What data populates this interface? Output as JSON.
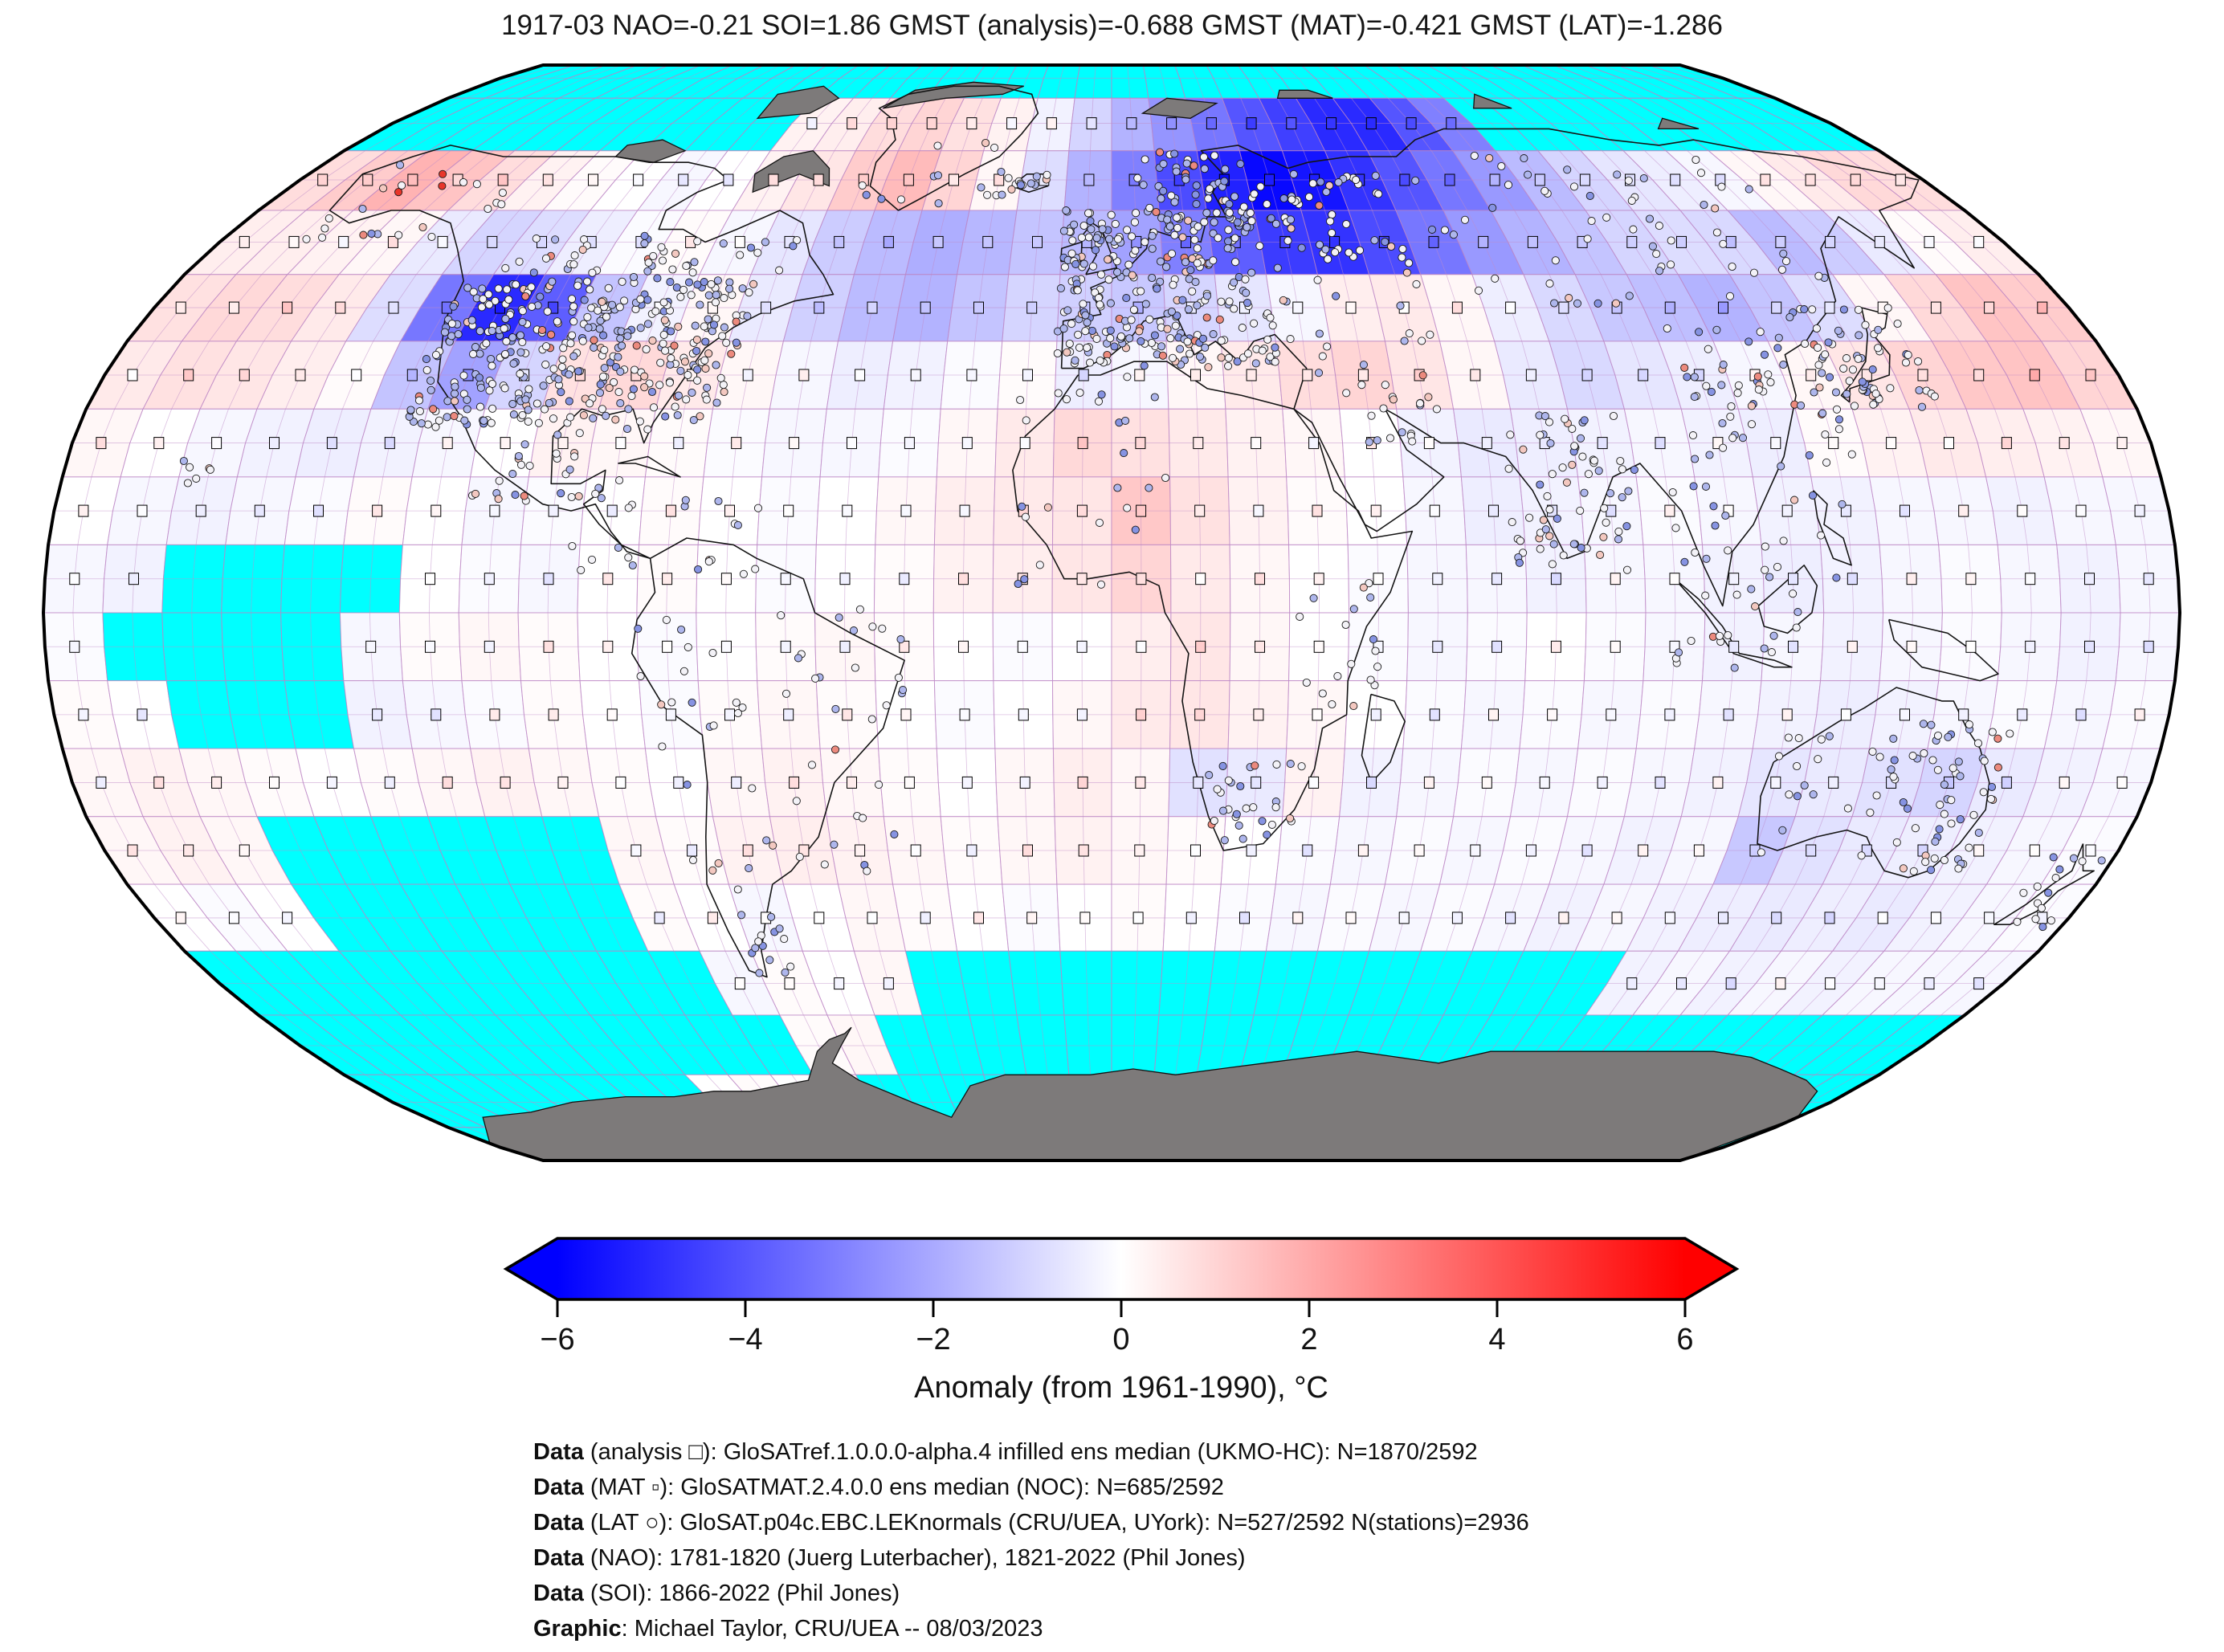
{
  "title": "1917-03 NAO=-0.21 SOI=1.86 GMST (analysis)=-0.688 GMST (MAT)=-0.421 GMST (LAT)=-1.286",
  "chart_data": {
    "type": "heatmap",
    "projection": "Robinson world map, 5-degree graticule",
    "stats": {
      "month": "1917-03",
      "NAO": -0.21,
      "SOI": 1.86,
      "GMST_analysis": -0.688,
      "GMST_MAT": -0.421,
      "GMST_LAT": -1.286
    },
    "colorbar": {
      "label": "Anomaly (from 1961-1990), °C",
      "ticks": [
        -6,
        -4,
        -2,
        0,
        2,
        4,
        6
      ],
      "min": -6,
      "max": 6,
      "colors": {
        "low": "#0000ff",
        "mid": "#ffffff",
        "high": "#ff0000",
        "missing": "#00ffff",
        "land_no_data": "#7d7a7a"
      }
    },
    "markers": [
      {
        "symbol": "□",
        "name": "analysis",
        "count_label": "N=1870/2592"
      },
      {
        "symbol": "▫",
        "name": "MAT",
        "count_label": "N=685/2592"
      },
      {
        "symbol": "○",
        "name": "LAT stations",
        "count_label": "N=527/2592 N(stations)=2936"
      }
    ],
    "grid": {
      "lat_step": 10,
      "lon_step": 10,
      "row_order": "north-to-south starting 90N-80N",
      "col_order": "west-to-east starting 180W-170W",
      "missing_token": "X",
      "anomaly_rows": [
        [
          "X",
          "X",
          "X",
          "X",
          "X",
          "X",
          "X",
          "X",
          "X",
          "X",
          "X",
          "X",
          "X",
          "X",
          "X",
          "X",
          "X",
          "X",
          "X",
          "X",
          "X",
          "X",
          "X",
          "X",
          "X",
          "X",
          "X",
          "X",
          "X",
          "X",
          "X",
          "X",
          "X",
          "X",
          "X",
          "X"
        ],
        [
          "X",
          "X",
          "X",
          "X",
          "X",
          "X",
          "X",
          "X",
          "X",
          "X",
          0.3,
          0.4,
          0.8,
          1.0,
          0.7,
          0.3,
          -0.3,
          -1.0,
          -1.8,
          -2.5,
          -3.2,
          -4.0,
          -4.5,
          -5.0,
          -5.0,
          -4.0,
          -3.0,
          "X",
          "X",
          "X",
          "X",
          "X",
          "X",
          "X",
          "X",
          "X"
        ],
        [
          0.8,
          1.2,
          1.8,
          1.4,
          0.8,
          0.3,
          0.1,
          0.0,
          -0.2,
          0.0,
          0.3,
          0.6,
          1.2,
          1.6,
          1.0,
          0.2,
          -0.8,
          -1.8,
          -3.0,
          -4.2,
          -5.2,
          -5.8,
          -5.5,
          -4.8,
          -4.0,
          -3.2,
          -2.4,
          -1.6,
          -1.0,
          -0.6,
          -0.4,
          -0.2,
          0.2,
          0.5,
          0.9,
          0.8
        ],
        [
          0.4,
          0.4,
          0.3,
          0.2,
          -0.5,
          -1.0,
          -0.8,
          -0.4,
          -0.1,
          0.1,
          -0.2,
          -0.6,
          -1.2,
          -1.6,
          -1.9,
          -1.7,
          -1.4,
          -1.6,
          -2.2,
          -3.0,
          -3.8,
          -4.6,
          -4.8,
          -4.2,
          -3.2,
          -2.4,
          -1.8,
          -1.4,
          -1.0,
          -0.8,
          -0.9,
          -1.6,
          -1.2,
          -0.5,
          0.1,
          0.4
        ],
        [
          0.7,
          0.9,
          0.8,
          0.5,
          -0.8,
          -3.2,
          -5.0,
          -3.8,
          -1.4,
          -0.3,
          0.2,
          -0.5,
          -1.1,
          -1.6,
          -1.8,
          -1.4,
          -1.0,
          -1.1,
          -1.3,
          -1.0,
          -0.6,
          -0.2,
          0.4,
          0.5,
          0.2,
          -0.4,
          -0.9,
          -1.3,
          -1.5,
          -1.8,
          -1.4,
          -0.8,
          0.2,
          0.9,
          1.4,
          1.2
        ],
        [
          0.5,
          0.7,
          0.6,
          0.4,
          0.1,
          -1.4,
          -2.2,
          -1.0,
          0.7,
          0.9,
          0.5,
          0.2,
          -0.2,
          -0.4,
          -0.3,
          -0.1,
          0.1,
          -0.4,
          -0.2,
          0.2,
          0.5,
          0.8,
          1.0,
          0.6,
          0.2,
          -0.5,
          -0.9,
          -0.6,
          -0.4,
          -0.2,
          0.2,
          0.6,
          1.0,
          1.3,
          1.4,
          1.0
        ],
        [
          0.2,
          0.0,
          -0.2,
          -0.3,
          -0.4,
          -0.3,
          -0.2,
          0.0,
          0.3,
          0.2,
          0.1,
          -0.1,
          -0.2,
          -0.2,
          -0.1,
          0.2,
          0.5,
          0.9,
          0.7,
          0.5,
          0.3,
          0.2,
          0.0,
          -0.3,
          -0.5,
          -0.4,
          -0.3,
          -0.2,
          -0.3,
          -0.4,
          0.1,
          0.3,
          0.5,
          0.4,
          0.3,
          0.2
        ],
        [
          0.0,
          -0.2,
          -0.3,
          -0.2,
          -0.1,
          0.1,
          0.0,
          -0.2,
          -0.1,
          0.0,
          0.1,
          0.0,
          -0.1,
          0.0,
          0.2,
          0.4,
          0.5,
          0.6,
          1.3,
          0.7,
          0.3,
          0.1,
          0.0,
          -0.2,
          -0.4,
          -0.3,
          -0.2,
          -0.1,
          -0.2,
          -0.3,
          -0.3,
          -0.2,
          -0.2,
          -0.3,
          -0.2,
          -0.2
        ],
        [
          -0.2,
          -0.3,
          "X",
          "X",
          "X",
          "X",
          0.0,
          -0.1,
          -0.2,
          0.0,
          0.1,
          0.0,
          -0.1,
          0.0,
          0.1,
          0.3,
          0.4,
          0.6,
          1.0,
          0.5,
          0.2,
          0.0,
          -0.1,
          -0.2,
          -0.2,
          -0.3,
          -0.2,
          -0.2,
          -0.3,
          -0.4,
          -0.3,
          -0.2,
          -0.1,
          -0.2,
          -0.3,
          -0.2
        ],
        [
          -0.1,
          "X",
          "X",
          "X",
          "X",
          -0.2,
          0.1,
          0.2,
          0.1,
          0.0,
          -0.1,
          0.0,
          0.1,
          0.2,
          0.1,
          0.0,
          -0.1,
          0.0,
          0.4,
          0.6,
          0.2,
          0.0,
          -0.1,
          -0.2,
          -0.1,
          0.0,
          -0.1,
          -0.2,
          -0.3,
          -0.2,
          -0.3,
          -0.2,
          -0.1,
          -0.2,
          -0.3,
          -0.2
        ],
        [
          0.1,
          0.0,
          "X",
          "X",
          "X",
          -0.3,
          -0.2,
          -0.1,
          0.1,
          0.0,
          -0.1,
          0.1,
          0.2,
          0.1,
          0.0,
          -0.1,
          0.0,
          0.2,
          0.5,
          0.6,
          0.3,
          0.2,
          0.0,
          -0.1,
          -0.2,
          -0.1,
          -0.2,
          -0.1,
          -0.2,
          -0.3,
          -0.4,
          -0.3,
          -0.2,
          -0.1,
          -0.2,
          -0.1
        ],
        [
          0.2,
          0.3,
          0.2,
          0.1,
          0.0,
          0.1,
          0.2,
          0.3,
          0.2,
          0.1,
          0.0,
          0.2,
          0.3,
          0.2,
          0.1,
          0.0,
          0.2,
          0.4,
          0.2,
          -0.7,
          -0.5,
          0.3,
          -0.3,
          -0.2,
          -0.1,
          -0.2,
          -0.1,
          -0.2,
          -0.3,
          -0.6,
          -0.5,
          -0.7,
          -1.0,
          -0.5,
          -0.3,
          -0.2
        ],
        [
          0.2,
          0.3,
          0.2,
          "X",
          "X",
          "X",
          "X",
          "X",
          "X",
          0.2,
          0.1,
          0.3,
          0.4,
          0.3,
          0.2,
          0.1,
          0.2,
          0.3,
          0.2,
          0.1,
          0.0,
          -0.1,
          -0.2,
          -0.1,
          -0.2,
          -0.1,
          -0.2,
          -0.3,
          -0.2,
          -1.3,
          -0.7,
          -0.5,
          -0.4,
          -0.3,
          -0.2,
          -0.1
        ],
        [
          0.0,
          -0.1,
          0.0,
          "X",
          "X",
          "X",
          "X",
          "X",
          "X",
          0.1,
          0.0,
          -0.2,
          0.0,
          0.2,
          0.1,
          0.0,
          -0.1,
          0.0,
          0.1,
          0.0,
          -0.1,
          -0.2,
          -0.1,
          -0.2,
          -0.1,
          -0.2,
          -0.3,
          -0.2,
          -0.3,
          -0.4,
          -0.5,
          -0.4,
          -0.5,
          -0.3,
          -0.2,
          -0.1
        ],
        [
          "X",
          "X",
          "X",
          "X",
          "X",
          "X",
          "X",
          "X",
          "X",
          "X",
          -0.2,
          0.1,
          0.0,
          0.2,
          "X",
          "X",
          "X",
          "X",
          "X",
          "X",
          "X",
          "X",
          "X",
          "X",
          "X",
          "X",
          "X",
          "X",
          -0.3,
          -0.2,
          -0.3,
          -0.2,
          -0.3,
          -0.2,
          -0.2,
          -0.2
        ],
        [
          "X",
          "X",
          "X",
          "X",
          "X",
          "X",
          "X",
          "X",
          "X",
          "X",
          "X",
          0.1,
          0.2,
          "X",
          "X",
          "X",
          "X",
          "X",
          "X",
          "X",
          "X",
          "X",
          "X",
          "X",
          "X",
          "X",
          "X",
          "X",
          "X",
          "X",
          "X",
          "X",
          "X",
          "X",
          "X",
          "X"
        ],
        [
          "X",
          "X",
          "X",
          "X",
          "X",
          "X",
          "X",
          "X",
          0.0,
          0.1,
          0.0,
          0.2,
          "X",
          "X",
          "X",
          "X",
          "X",
          "X",
          "X",
          "X",
          "X",
          "X",
          "X",
          "X",
          "X",
          "X",
          "X",
          "X",
          "X",
          "X",
          "X",
          "X",
          "X",
          "X",
          "X",
          "X"
        ],
        [
          "X",
          "X",
          "X",
          "X",
          "X",
          "X",
          "X",
          "X",
          "X",
          "X",
          "X",
          "X",
          "X",
          "X",
          "X",
          "X",
          "X",
          "X",
          "X",
          "X",
          "X",
          "X",
          "X",
          "X",
          "X",
          "X",
          "X",
          "X",
          "X",
          "X",
          "X",
          "X",
          "X",
          "X",
          "X",
          "X"
        ]
      ]
    }
  },
  "footnotes": [
    {
      "prefix": "Data",
      "text": " (analysis □): GloSATref.1.0.0.0-alpha.4 infilled ens median (UKMO-HC): N=1870/2592"
    },
    {
      "prefix": "Data",
      "text": " (MAT ▫): GloSATMAT.2.4.0.0 ens median (NOC): N=685/2592"
    },
    {
      "prefix": "Data",
      "text": " (LAT ○): GloSAT.p04c.EBC.LEKnormals (CRU/UEA, UYork): N=527/2592 N(stations)=2936"
    },
    {
      "prefix": "Data",
      "text": " (NAO): 1781-1820 (Juerg Luterbacher), 1821-2022 (Phil Jones)"
    },
    {
      "prefix": "Data",
      "text": " (SOI): 1866-2022 (Phil Jones)"
    },
    {
      "prefix": "Graphic",
      "text": ": Michael Taylor, CRU/UEA -- 08/03/2023"
    }
  ]
}
